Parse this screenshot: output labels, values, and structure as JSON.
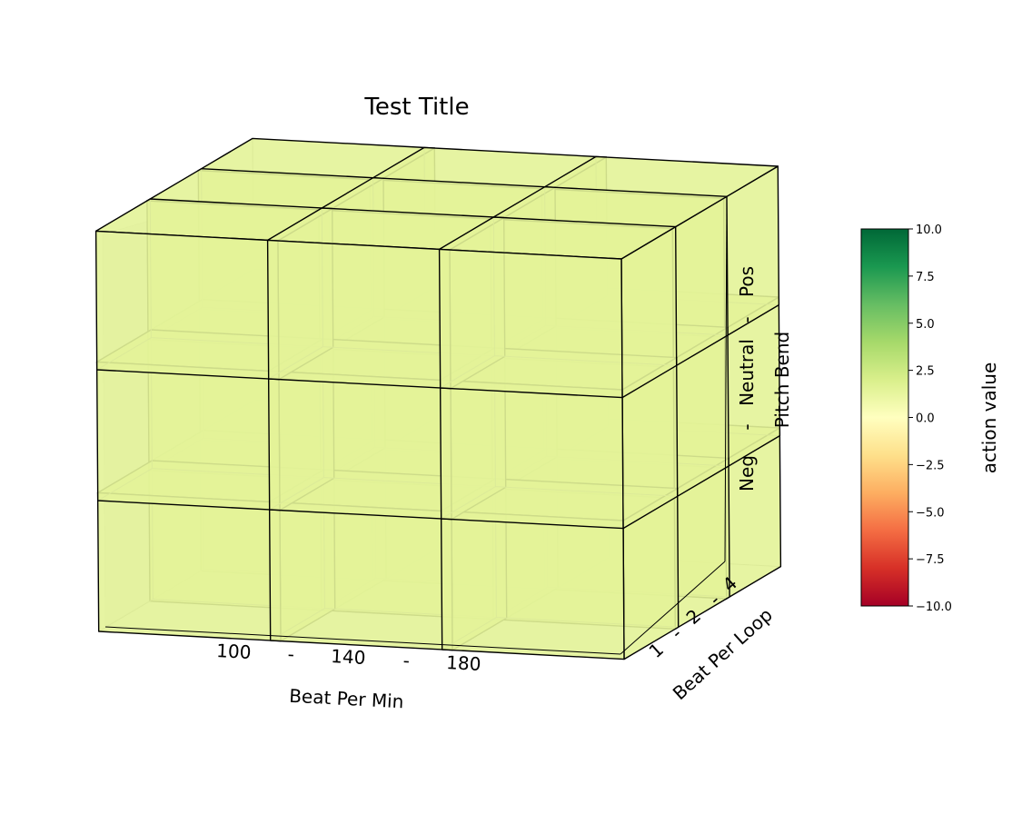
{
  "chart_data": {
    "type": "3d-voxel",
    "title": "Test Title",
    "xlabel": "Beat Per Min",
    "ylabel": "Beat Per Loop",
    "zlabel": "Pitch Bend",
    "x_ticks": [
      "100",
      "-",
      "140",
      "-",
      "180"
    ],
    "y_ticks": [
      "1",
      "-",
      "2",
      "-",
      "4"
    ],
    "z_ticks": [
      "Neg",
      "-",
      "Neutral",
      "-",
      "Pos"
    ],
    "x_categories": [
      "100",
      "140",
      "180"
    ],
    "y_categories": [
      "1",
      "2",
      "4"
    ],
    "z_categories": [
      "Neg",
      "Neutral",
      "Pos"
    ],
    "values": [
      [
        [
          1.5,
          1.5,
          1.5
        ],
        [
          1.5,
          1.5,
          1.5
        ],
        [
          1.5,
          1.5,
          1.5
        ]
      ],
      [
        [
          1.5,
          1.5,
          1.5
        ],
        [
          1.5,
          1.5,
          1.5
        ],
        [
          1.5,
          1.5,
          1.5
        ]
      ],
      [
        [
          1.5,
          1.5,
          1.5
        ],
        [
          1.5,
          1.5,
          1.5
        ],
        [
          1.5,
          1.5,
          1.5
        ]
      ]
    ],
    "colorbar": {
      "label": "action value",
      "range": [
        -10,
        10
      ],
      "ticks": [
        "10.0",
        "7.5",
        "5.0",
        "2.5",
        "0.0",
        "−2.5",
        "−5.0",
        "−7.5",
        "−10.0"
      ],
      "colormap": "RdYlGn",
      "stops": [
        "#a50026",
        "#d73027",
        "#f46d43",
        "#fdae61",
        "#fee08b",
        "#ffffbf",
        "#d9ef8b",
        "#a6d96a",
        "#66bd63",
        "#1a9850",
        "#006837"
      ]
    },
    "face_color": "#e6f5a0",
    "edge_color": "#000000",
    "grid": false
  }
}
